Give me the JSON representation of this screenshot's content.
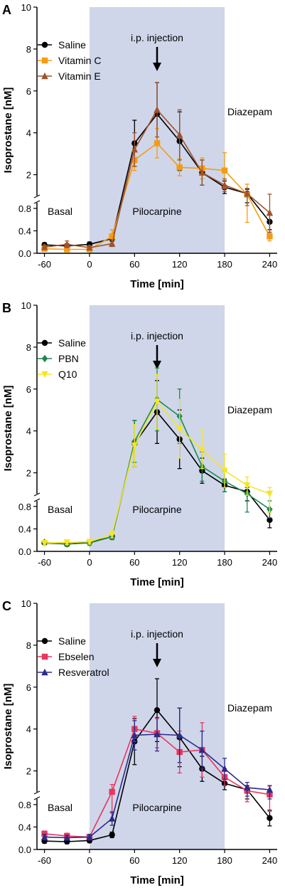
{
  "chart_data": [
    {
      "panel": "A",
      "type": "line",
      "xlabel": "Time [min]",
      "ylabel": "Isoprostane [nM]",
      "x_ticks": [
        -60,
        0,
        60,
        120,
        180,
        240
      ],
      "y_ticks_lower": [
        "0.0",
        "0.4",
        "0.8"
      ],
      "y_ticks_upper": [
        "2",
        "4",
        "6",
        "8",
        "10"
      ],
      "xlim": [
        -70,
        250
      ],
      "ylim_lower": [
        0,
        0.9
      ],
      "ylim_upper": [
        1,
        10
      ],
      "shaded_x": [
        0,
        180
      ],
      "annotations": {
        "injection": "i.p. injection",
        "basal": "Basal",
        "pilocarpine": "Pilocarpine",
        "diazepam": "Diazepam"
      },
      "injection_x": 90,
      "x": [
        -60,
        -30,
        0,
        30,
        60,
        90,
        120,
        150,
        180,
        210,
        240
      ],
      "series": [
        {
          "name": "Saline",
          "color": "#000000",
          "marker": "circle",
          "values": [
            0.15,
            0.13,
            0.16,
            0.26,
            3.5,
            4.9,
            3.6,
            2.1,
            1.4,
            1.1,
            0.56
          ],
          "errors": [
            0.04,
            0.04,
            0.04,
            0.05,
            1.1,
            1.5,
            1.4,
            0.6,
            0.3,
            0.2,
            0.14
          ]
        },
        {
          "name": "Vitamin C",
          "color": "#f39c12",
          "marker": "square",
          "values": [
            0.08,
            0.07,
            0.07,
            0.3,
            2.7,
            3.5,
            2.35,
            2.3,
            2.2,
            1.05,
            0.3
          ],
          "errors": [
            0.03,
            0.04,
            0.03,
            0.12,
            0.5,
            0.7,
            0.4,
            0.5,
            0.85,
            0.5,
            0.08
          ]
        },
        {
          "name": "Vitamin E",
          "color": "#a0522d",
          "marker": "triangle",
          "values": [
            0.11,
            0.16,
            0.1,
            0.17,
            3.2,
            5.1,
            3.9,
            2.1,
            1.5,
            1.1,
            0.72
          ],
          "errors": [
            0.04,
            0.06,
            0.04,
            0.05,
            0.8,
            1.3,
            1.2,
            0.6,
            0.3,
            0.25,
            0.35
          ]
        }
      ]
    },
    {
      "panel": "B",
      "type": "line",
      "xlabel": "Time [min]",
      "ylabel": "Isoprostane [nM]",
      "x_ticks": [
        -60,
        0,
        60,
        120,
        180,
        240
      ],
      "y_ticks_lower": [
        "0.0",
        "0.4",
        "0.8"
      ],
      "y_ticks_upper": [
        "2",
        "4",
        "6",
        "8",
        "10"
      ],
      "xlim": [
        -70,
        250
      ],
      "ylim_lower": [
        0,
        0.9
      ],
      "ylim_upper": [
        1,
        10
      ],
      "shaded_x": [
        0,
        180
      ],
      "annotations": {
        "injection": "i.p. injection",
        "basal": "Basal",
        "pilocarpine": "Pilocarpine",
        "diazepam": "Diazepam"
      },
      "injection_x": 90,
      "x": [
        -60,
        -30,
        0,
        30,
        60,
        90,
        120,
        150,
        180,
        210,
        240
      ],
      "series": [
        {
          "name": "Saline",
          "color": "#000000",
          "marker": "circle",
          "values": [
            0.15,
            0.13,
            0.16,
            0.26,
            3.4,
            4.9,
            3.6,
            2.1,
            1.4,
            1.1,
            0.56
          ],
          "errors": [
            0.04,
            0.04,
            0.04,
            0.05,
            1.1,
            1.5,
            1.4,
            0.6,
            0.3,
            0.2,
            0.14
          ]
        },
        {
          "name": "PBN",
          "color": "#1e8a4c",
          "marker": "diamond",
          "values": [
            0.16,
            0.13,
            0.15,
            0.26,
            3.5,
            5.5,
            4.7,
            2.3,
            1.6,
            1.0,
            0.75
          ],
          "errors": [
            0.03,
            0.04,
            0.04,
            0.05,
            1.0,
            1.5,
            1.3,
            0.7,
            0.5,
            0.3,
            0.15
          ]
        },
        {
          "name": "Q10",
          "color": "#f5e625",
          "marker": "triangle-down",
          "values": [
            0.15,
            0.16,
            0.17,
            0.3,
            3.3,
            5.4,
            4.1,
            3.1,
            2.1,
            1.4,
            1.0
          ],
          "errors": [
            0.04,
            0.04,
            0.04,
            0.06,
            1.0,
            1.3,
            1.4,
            0.9,
            0.8,
            0.4,
            0.3
          ]
        }
      ]
    },
    {
      "panel": "C",
      "type": "line",
      "xlabel": "Time [min]",
      "ylabel": "Isoprostane [nM]",
      "x_ticks": [
        -60,
        0,
        60,
        120,
        180,
        240
      ],
      "y_ticks_lower": [
        "0.0",
        "0.4",
        "0.8"
      ],
      "y_ticks_upper": [
        "2",
        "4",
        "6",
        "8",
        "10"
      ],
      "xlim": [
        -70,
        250
      ],
      "ylim_lower": [
        0,
        0.9
      ],
      "ylim_upper": [
        1,
        10
      ],
      "shaded_x": [
        0,
        180
      ],
      "annotations": {
        "injection": "i.p. injection",
        "basal": "Basal",
        "pilocarpine": "Pilocarpine",
        "diazepam": "Diazepam"
      },
      "injection_x": 90,
      "x": [
        -60,
        -30,
        0,
        30,
        60,
        90,
        120,
        150,
        180,
        210,
        240
      ],
      "series": [
        {
          "name": "Saline",
          "color": "#000000",
          "marker": "circle",
          "values": [
            0.15,
            0.14,
            0.16,
            0.26,
            3.4,
            4.9,
            3.6,
            2.1,
            1.4,
            1.1,
            0.56
          ],
          "errors": [
            0.04,
            0.04,
            0.04,
            0.05,
            1.1,
            1.5,
            1.4,
            0.6,
            0.3,
            0.2,
            0.14
          ]
        },
        {
          "name": "Ebselen",
          "color": "#e8365d",
          "marker": "square",
          "values": [
            0.28,
            0.24,
            0.22,
            1.0,
            4.0,
            3.8,
            2.9,
            3.0,
            1.7,
            1.05,
            0.98
          ],
          "errors": [
            0.05,
            0.05,
            0.05,
            0.35,
            0.6,
            0.7,
            1.0,
            1.3,
            0.4,
            0.2,
            0.3
          ]
        },
        {
          "name": "Resveratrol",
          "color": "#2b2b8c",
          "marker": "triangle",
          "values": [
            0.22,
            0.21,
            0.22,
            0.55,
            3.7,
            3.75,
            3.7,
            3.0,
            2.1,
            1.2,
            1.1
          ],
          "errors": [
            0.05,
            0.04,
            0.05,
            0.12,
            0.7,
            0.8,
            1.3,
            0.9,
            0.5,
            0.25,
            0.2
          ]
        }
      ]
    }
  ]
}
